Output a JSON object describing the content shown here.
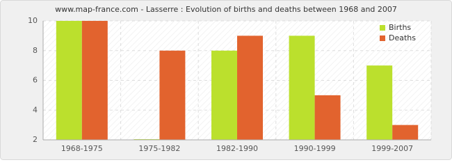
{
  "chart_data": {
    "type": "bar",
    "title": "www.map-france.com - Lasserre : Evolution of births and deaths between 1968 and 2007",
    "categories": [
      "1968-1975",
      "1975-1982",
      "1982-1990",
      "1990-1999",
      "1999-2007"
    ],
    "series": [
      {
        "name": "Births",
        "color": "#bbe02d",
        "values": [
          10,
          2,
          8,
          9,
          7
        ]
      },
      {
        "name": "Deaths",
        "color": "#e2632e",
        "values": [
          10,
          8,
          9,
          5,
          3
        ]
      }
    ],
    "ylim": [
      2,
      10
    ],
    "yticks": [
      2,
      4,
      6,
      8,
      10
    ],
    "grid": true,
    "legend": "top-right"
  }
}
